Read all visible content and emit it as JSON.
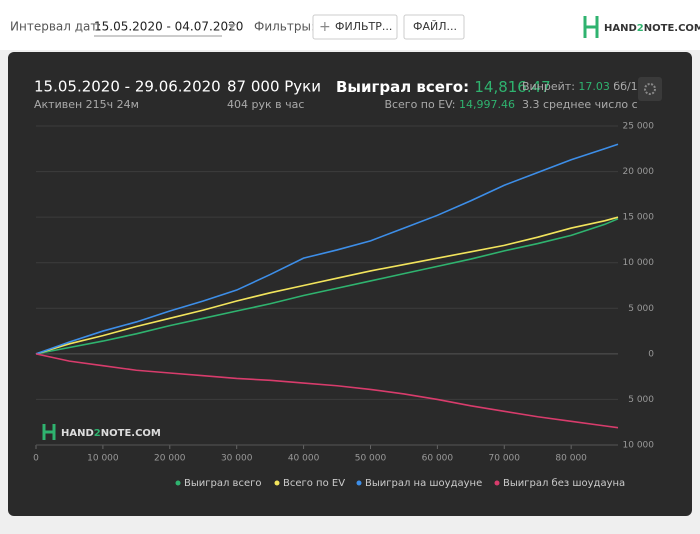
{
  "toolbar": {
    "date_label": "Интервал дат:",
    "date_range": "15.05.2020 - 04.07.2020",
    "filters_label": "Фильтры:",
    "filter_button": "ФИЛЬТР...",
    "file_button": "ФАЙЛ...",
    "logo": {
      "a": "HAND",
      "b": "2",
      "c": "NOTE.COM"
    }
  },
  "stats": {
    "period": "15.05.2020 - 29.06.2020",
    "active": "Активен 215ч 24м",
    "hands": "87 000 Руки",
    "hands_per_hour": "404 рук в час",
    "won_label": "Выиграл всего:",
    "won_value": "14,816.47",
    "ev_label": "Всего по EV:",
    "ev_value": "14,997.46",
    "winrate_label": "Винрейт:",
    "winrate_value": "17.03",
    "winrate_unit": "бб/1",
    "avg": "3.3 среднее число с"
  },
  "watermark": {
    "a": "HAND",
    "b": "2",
    "c": "NOTE.COM"
  },
  "chart_data": {
    "type": "line",
    "x": [
      0,
      5000,
      10000,
      15000,
      20000,
      25000,
      30000,
      35000,
      40000,
      45000,
      50000,
      55000,
      60000,
      65000,
      70000,
      75000,
      80000,
      85000,
      87000
    ],
    "series": [
      {
        "name": "Выиграл всего",
        "color": "#2fb36f",
        "values": [
          0,
          700,
          1400,
          2200,
          3100,
          3900,
          4700,
          5500,
          6400,
          7200,
          8000,
          8800,
          9600,
          10400,
          11300,
          12100,
          13000,
          14200,
          14816.47
        ]
      },
      {
        "name": "Всего по EV",
        "color": "#f2e45c",
        "values": [
          0,
          1100,
          2000,
          3000,
          3900,
          4800,
          5800,
          6700,
          7500,
          8300,
          9100,
          9800,
          10500,
          11200,
          11900,
          12800,
          13800,
          14600,
          14997.46
        ]
      },
      {
        "name": "Выиграл на шоудауне",
        "color": "#3d8ee8",
        "values": [
          0,
          1300,
          2500,
          3500,
          4700,
          5800,
          7000,
          8700,
          10500,
          11400,
          12400,
          13800,
          15200,
          16800,
          18500,
          19900,
          21300,
          22500,
          23000
        ]
      },
      {
        "name": "Выиграл без шоудауна",
        "color": "#d83c6c",
        "values": [
          0,
          -800,
          -1300,
          -1800,
          -2100,
          -2400,
          -2700,
          -2900,
          -3200,
          -3500,
          -3900,
          -4400,
          -5000,
          -5700,
          -6300,
          -6900,
          -7400,
          -7900,
          -8100
        ]
      }
    ],
    "xlim": [
      0,
      87000
    ],
    "xticks": [
      0,
      {
        "value": 10000,
        "label": "10 000"
      },
      {
        "value": 20000,
        "label": "20 000"
      },
      {
        "value": 30000,
        "label": "30 000"
      },
      {
        "value": 40000,
        "label": "40 000"
      },
      {
        "value": 50000,
        "label": "50 000"
      },
      {
        "value": 60000,
        "label": "60 000"
      },
      {
        "value": 70000,
        "label": "70 000"
      },
      {
        "value": 80000,
        "label": "80 000"
      }
    ],
    "ylim": [
      -10000,
      25000
    ],
    "yticks": [
      {
        "value": -10000,
        "label": "10 000"
      },
      {
        "value": -5000,
        "label": "5 000"
      },
      0,
      {
        "value": 5000,
        "label": "5 000"
      },
      {
        "value": 10000,
        "label": "10 000"
      },
      {
        "value": 15000,
        "label": "15 000"
      },
      {
        "value": 20000,
        "label": "20 000"
      },
      {
        "value": 25000,
        "label": "25 000"
      }
    ],
    "grid": true
  }
}
